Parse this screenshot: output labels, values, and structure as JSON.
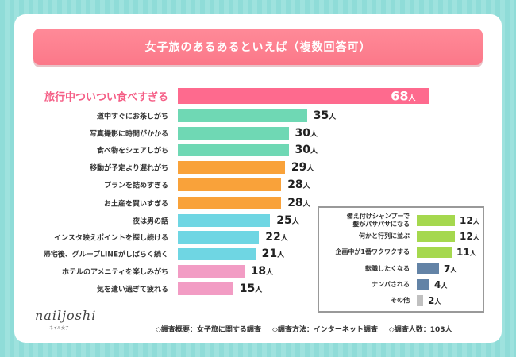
{
  "chart_data": {
    "type": "bar",
    "title": "女子旅のあるあるといえば（複数回答可）",
    "unit": "人",
    "categories": [
      "旅行中ついつい食べすぎる",
      "道中すぐにお茶しがち",
      "写真撮影に時間がかかる",
      "食べ物をシェアしがち",
      "移動が予定より遅れがち",
      "プランを詰めすぎる",
      "お土産を買いすぎる",
      "夜は男の話",
      "インスタ映えポイントを探し続ける",
      "帰宅後、グループLINEがしばらく続く",
      "ホテルのアメニティを楽しみがち",
      "気を遣い過ぎて疲れる"
    ],
    "values": [
      68,
      35,
      30,
      30,
      29,
      28,
      28,
      25,
      22,
      21,
      18,
      15
    ],
    "colors": [
      "#fe6a8e",
      "#6fd8b4",
      "#6fd8b4",
      "#6fd8b4",
      "#f9a23a",
      "#f9a23a",
      "#f9a23a",
      "#6fd6e3",
      "#6fd6e3",
      "#6fd6e3",
      "#f29cc4",
      "#f29cc4"
    ],
    "inset": {
      "categories": [
        "備え付けシャンプーで\n髪がパサパサになる",
        "何かと行列に並ぶ",
        "企画中が1番ワクワクする",
        "転職したくなる",
        "ナンパされる",
        "その他"
      ],
      "values": [
        12,
        12,
        11,
        7,
        4,
        2
      ],
      "colors": [
        "#a5d84e",
        "#a5d84e",
        "#a5d84e",
        "#6383a6",
        "#6383a6",
        "#c0c0c0"
      ]
    }
  },
  "logo": {
    "text": "nailjoshi",
    "sub": "ネイル女子"
  },
  "footer": [
    "◇調査概要：女子旅に関する調査",
    "◇調査方法：インターネット調査",
    "◇調査人数：103人"
  ]
}
